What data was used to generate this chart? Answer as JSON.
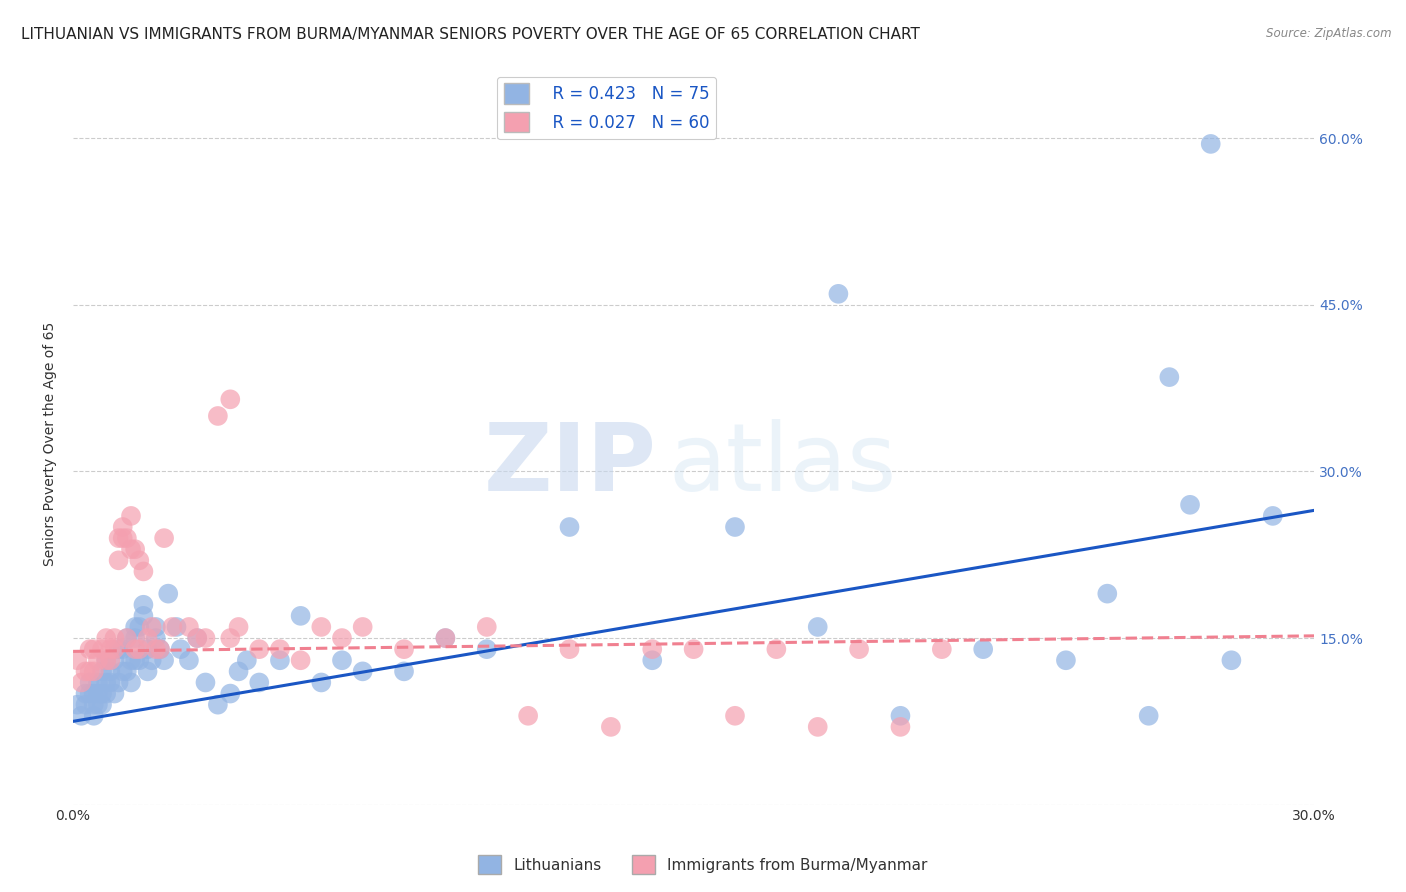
{
  "title": "LITHUANIAN VS IMMIGRANTS FROM BURMA/MYANMAR SENIORS POVERTY OVER THE AGE OF 65 CORRELATION CHART",
  "source": "Source: ZipAtlas.com",
  "ylabel": "Seniors Poverty Over the Age of 65",
  "xlim": [
    0.0,
    0.3
  ],
  "ylim": [
    0.0,
    0.65
  ],
  "yticks": [
    0.0,
    0.15,
    0.3,
    0.45,
    0.6
  ],
  "xticks": [
    0.0,
    0.05,
    0.1,
    0.15,
    0.2,
    0.25,
    0.3
  ],
  "xtick_labels": [
    "0.0%",
    "",
    "",
    "",
    "",
    "",
    "30.0%"
  ],
  "right_ytick_labels": [
    "",
    "15.0%",
    "30.0%",
    "45.0%",
    "60.0%"
  ],
  "blue_R": 0.423,
  "blue_N": 75,
  "pink_R": 0.027,
  "pink_N": 60,
  "blue_color": "#92b4e3",
  "pink_color": "#f4a0b0",
  "blue_line_color": "#1a56c4",
  "pink_line_color": "#f08090",
  "watermark_zip": "ZIP",
  "watermark_atlas": "atlas",
  "blue_scatter_x": [
    0.001,
    0.002,
    0.003,
    0.003,
    0.004,
    0.004,
    0.005,
    0.005,
    0.005,
    0.006,
    0.006,
    0.006,
    0.007,
    0.007,
    0.007,
    0.008,
    0.008,
    0.008,
    0.009,
    0.009,
    0.01,
    0.01,
    0.011,
    0.011,
    0.012,
    0.012,
    0.013,
    0.013,
    0.014,
    0.014,
    0.015,
    0.015,
    0.015,
    0.016,
    0.016,
    0.017,
    0.017,
    0.018,
    0.018,
    0.019,
    0.02,
    0.02,
    0.021,
    0.022,
    0.023,
    0.025,
    0.026,
    0.028,
    0.03,
    0.032,
    0.035,
    0.038,
    0.04,
    0.042,
    0.045,
    0.05,
    0.055,
    0.06,
    0.065,
    0.07,
    0.08,
    0.09,
    0.1,
    0.12,
    0.14,
    0.16,
    0.18,
    0.2,
    0.22,
    0.24,
    0.25,
    0.26,
    0.27,
    0.28,
    0.29
  ],
  "blue_scatter_y": [
    0.09,
    0.08,
    0.09,
    0.1,
    0.1,
    0.11,
    0.08,
    0.09,
    0.1,
    0.09,
    0.1,
    0.11,
    0.09,
    0.1,
    0.12,
    0.1,
    0.11,
    0.13,
    0.11,
    0.12,
    0.1,
    0.13,
    0.11,
    0.14,
    0.12,
    0.14,
    0.12,
    0.15,
    0.11,
    0.13,
    0.13,
    0.15,
    0.16,
    0.13,
    0.16,
    0.17,
    0.18,
    0.12,
    0.14,
    0.13,
    0.15,
    0.16,
    0.14,
    0.13,
    0.19,
    0.16,
    0.14,
    0.13,
    0.15,
    0.11,
    0.09,
    0.1,
    0.12,
    0.13,
    0.11,
    0.13,
    0.17,
    0.11,
    0.13,
    0.12,
    0.12,
    0.15,
    0.14,
    0.25,
    0.13,
    0.25,
    0.16,
    0.08,
    0.14,
    0.13,
    0.19,
    0.08,
    0.27,
    0.13,
    0.26
  ],
  "pink_scatter_x": [
    0.001,
    0.002,
    0.003,
    0.004,
    0.004,
    0.005,
    0.005,
    0.006,
    0.007,
    0.008,
    0.008,
    0.009,
    0.009,
    0.01,
    0.01,
    0.011,
    0.011,
    0.012,
    0.012,
    0.013,
    0.013,
    0.014,
    0.014,
    0.015,
    0.015,
    0.016,
    0.016,
    0.017,
    0.018,
    0.019,
    0.02,
    0.021,
    0.022,
    0.024,
    0.028,
    0.03,
    0.032,
    0.035,
    0.038,
    0.04,
    0.045,
    0.05,
    0.055,
    0.06,
    0.065,
    0.07,
    0.08,
    0.09,
    0.1,
    0.11,
    0.12,
    0.13,
    0.14,
    0.15,
    0.16,
    0.17,
    0.18,
    0.19,
    0.2,
    0.21
  ],
  "pink_scatter_y": [
    0.13,
    0.11,
    0.12,
    0.12,
    0.14,
    0.12,
    0.14,
    0.13,
    0.14,
    0.13,
    0.15,
    0.13,
    0.14,
    0.14,
    0.15,
    0.22,
    0.24,
    0.24,
    0.25,
    0.15,
    0.24,
    0.23,
    0.26,
    0.14,
    0.23,
    0.14,
    0.22,
    0.21,
    0.15,
    0.16,
    0.14,
    0.14,
    0.24,
    0.16,
    0.16,
    0.15,
    0.15,
    0.35,
    0.15,
    0.16,
    0.14,
    0.14,
    0.13,
    0.16,
    0.15,
    0.16,
    0.14,
    0.15,
    0.16,
    0.08,
    0.14,
    0.07,
    0.14,
    0.14,
    0.08,
    0.14,
    0.07,
    0.14,
    0.07,
    0.14
  ],
  "blue_trend_x": [
    0.0,
    0.3
  ],
  "blue_trend_y_start": 0.075,
  "blue_trend_y_end": 0.265,
  "pink_trend_x": [
    0.0,
    0.3
  ],
  "pink_trend_y_start": 0.138,
  "pink_trend_y_end": 0.152,
  "legend_labels": [
    "Lithuanians",
    "Immigrants from Burma/Myanmar"
  ],
  "background_color": "#ffffff",
  "grid_color": "#cccccc",
  "title_fontsize": 11,
  "axis_fontsize": 10,
  "tick_fontsize": 10
}
